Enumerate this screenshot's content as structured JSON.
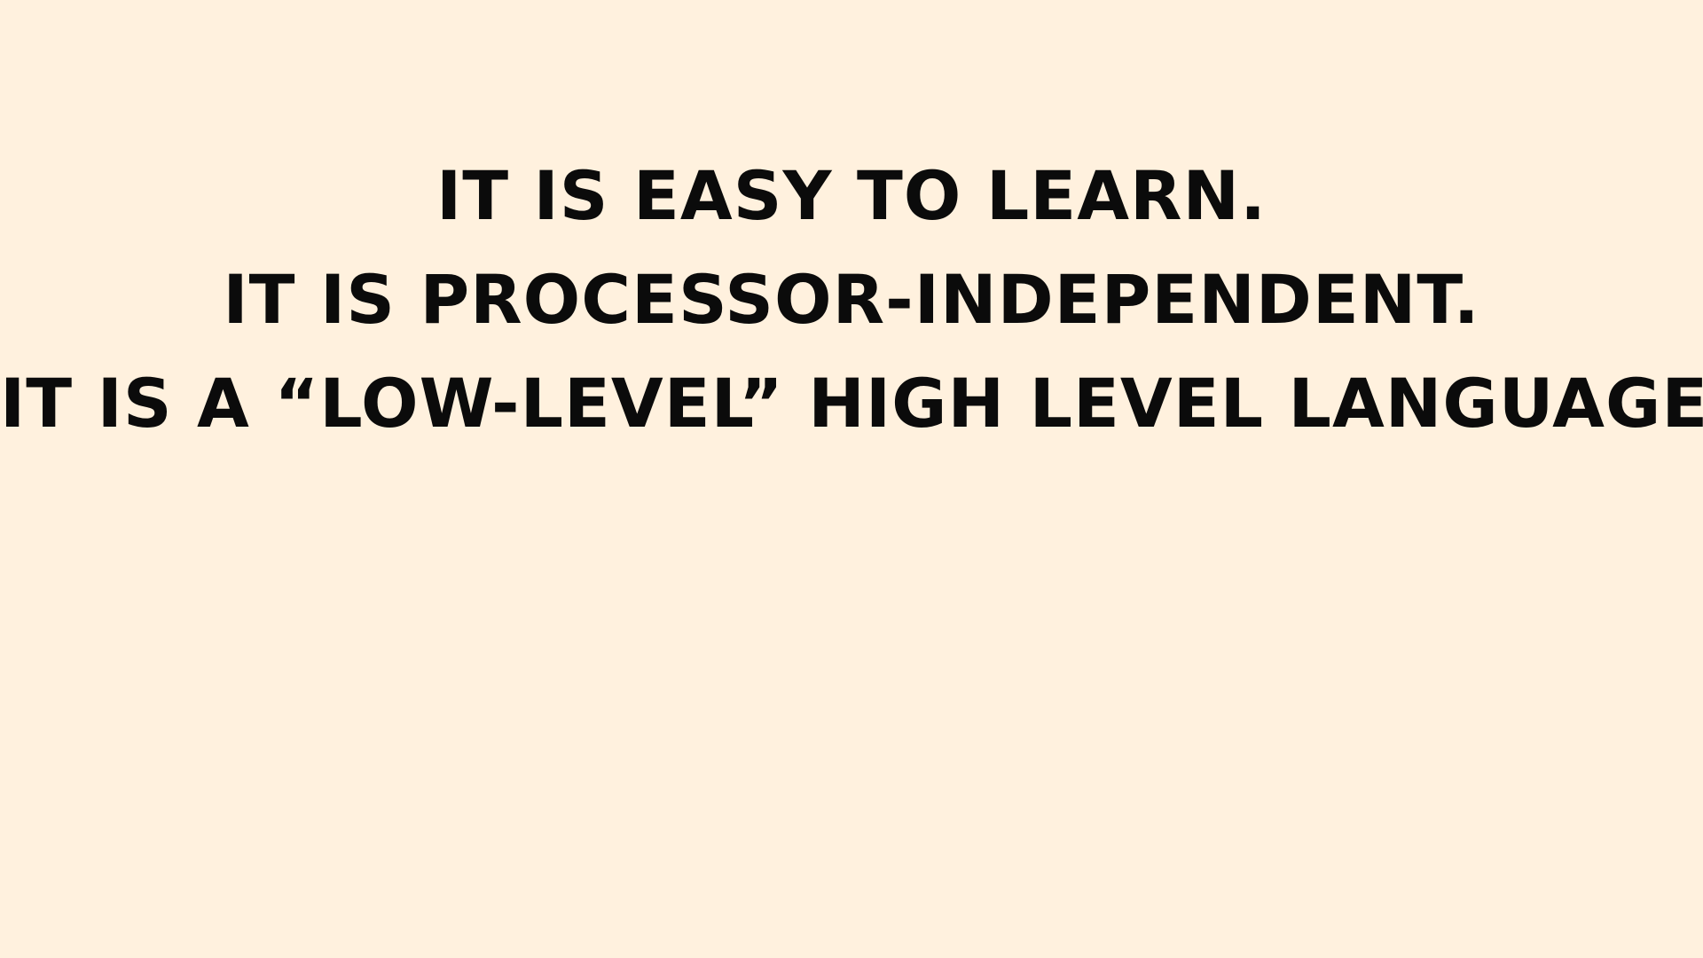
{
  "slide": {
    "background_color": "#FFF1DE",
    "text_color": "#0B0B0B",
    "lines": [
      "IT IS EASY TO LEARN.",
      "IT IS PROCESSOR-INDEPENDENT.",
      "IT IS A “LOW-LEVEL” HIGH LEVEL LANGUAGE"
    ]
  }
}
